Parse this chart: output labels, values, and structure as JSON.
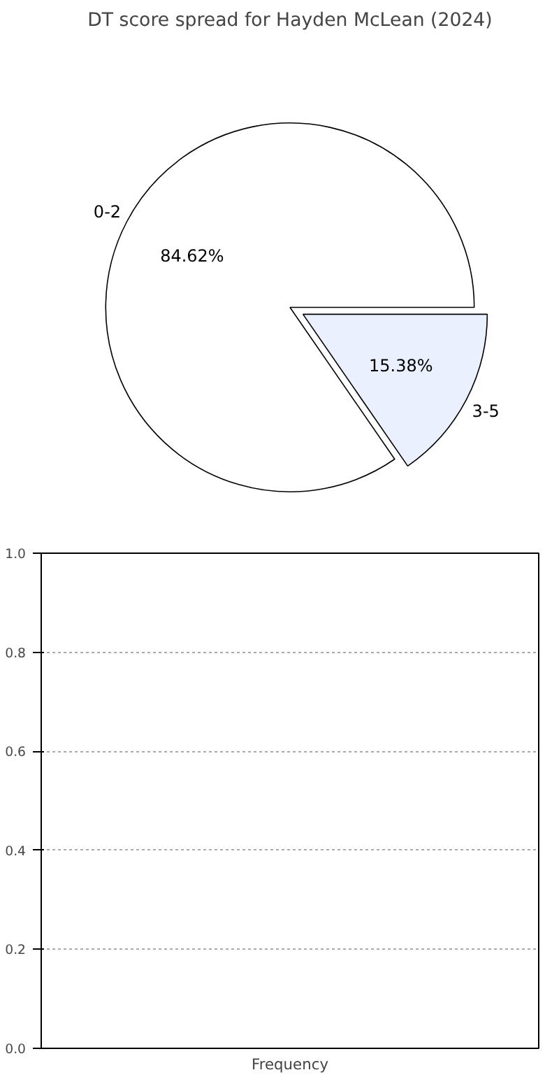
{
  "chart_data": [
    {
      "type": "pie",
      "title": "DT score spread for Hayden McLean (2024)",
      "categories": [
        "0-2",
        "3-5"
      ],
      "values": [
        84.62,
        15.38
      ],
      "colors": [
        "#ffffff",
        "#eaf0fe"
      ],
      "value_labels": [
        "84.62%",
        "15.38%"
      ]
    },
    {
      "type": "bar",
      "xlabel": "Frequency",
      "categories": [
        null
      ],
      "values": [
        null
      ],
      "ylim": [
        0,
        1.0
      ],
      "yticks": [
        {
          "value": 0,
          "label": "0.0"
        },
        0.2,
        0.4,
        0.6,
        0.8,
        {
          "value": 1.0,
          "label": "1.0"
        }
      ],
      "grid": "y"
    }
  ]
}
